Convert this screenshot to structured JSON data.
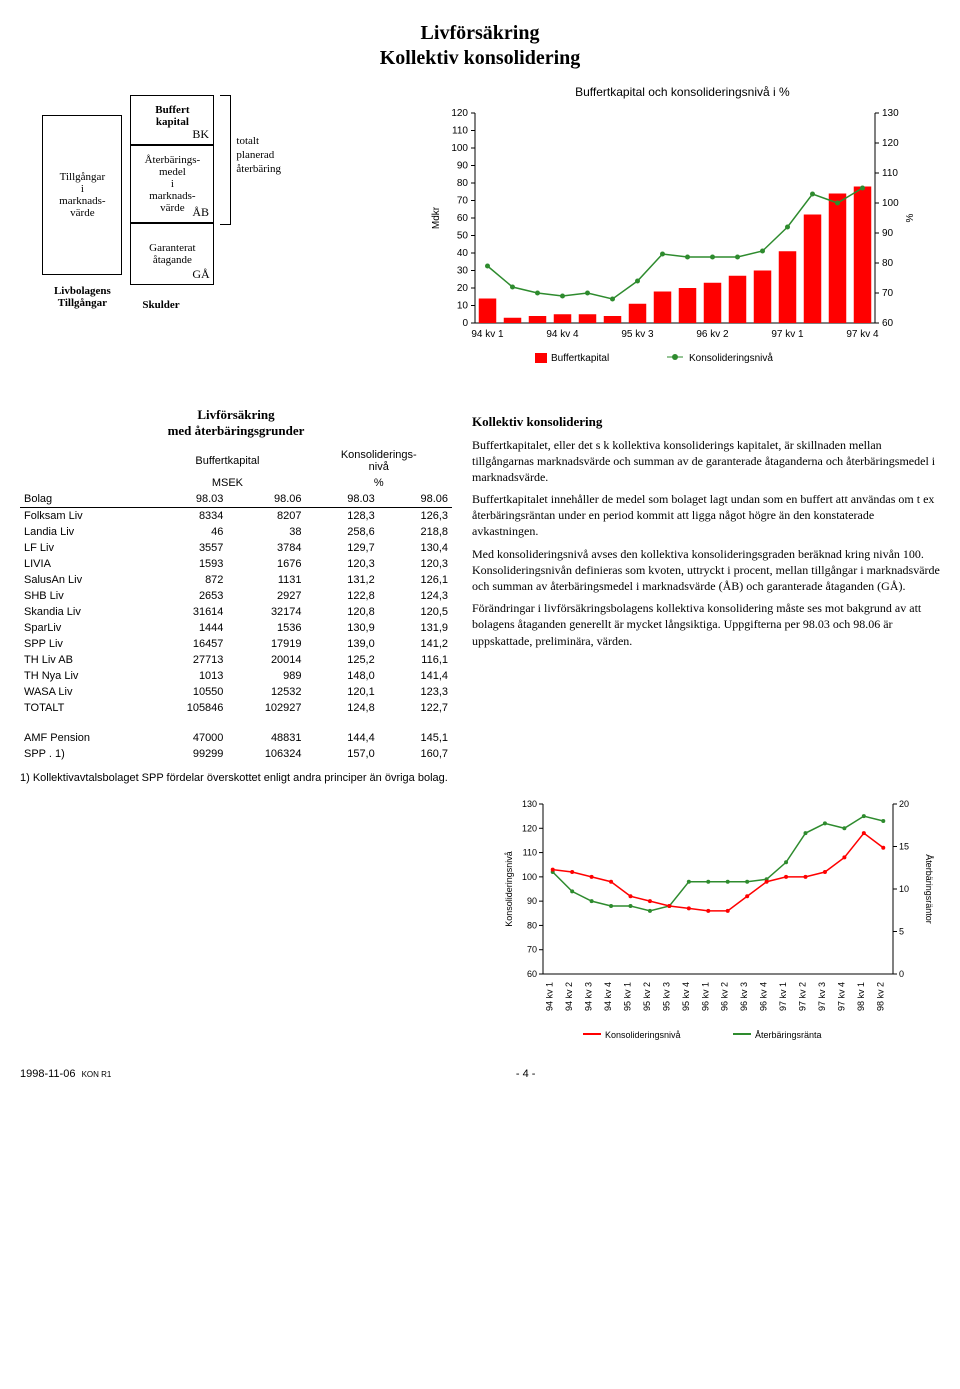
{
  "page": {
    "title1": "Livförsäkring",
    "title2": "Kollektiv konsolidering",
    "date": "1998-11-06",
    "ref": "KON R1",
    "pagenum": "- 4 -"
  },
  "diagram": {
    "left_box": "Tillgångar\ni\nmarknads-\nvärde",
    "bk_box": "Buffert\nkapital",
    "bk_lbl": "BK",
    "ab_box": "Återbärings-\nmedel\ni\nmarknads-\nvärde",
    "ab_lbl": "ÅB",
    "ga_box": "Garanterat\nåtagande",
    "ga_lbl": "GÅ",
    "side1": "totalt",
    "side2": "planerad",
    "side3": "återbäring",
    "bottom_left": "Livbolagens\nTillgångar",
    "bottom_right": "Skulder"
  },
  "chart1": {
    "title": "Buffertkapital och konsolideringsnivå i %",
    "yLeftLabel": "Mdkr",
    "yRightLabel": "%",
    "yLeft": {
      "min": 0,
      "max": 120,
      "step": 10
    },
    "yRight": {
      "min": 60,
      "max": 130,
      "step": 10
    },
    "categories": [
      "94 kv 1",
      "94 kv 4",
      "95 kv 3",
      "96 kv 2",
      "97 kv 1",
      "97 kv 4"
    ],
    "bars_x": [
      "94kv1",
      "94kv2",
      "94kv3",
      "94kv4",
      "95kv1",
      "95kv2",
      "95kv3",
      "95kv4",
      "96kv1",
      "96kv2",
      "96kv3",
      "96kv4",
      "97kv1",
      "97kv2",
      "97kv3",
      "97kv4"
    ],
    "bar_values": [
      14,
      3,
      4,
      5,
      5,
      4,
      11,
      18,
      20,
      23,
      27,
      30,
      41,
      62,
      74,
      78
    ],
    "line_values": [
      79,
      72,
      70,
      69,
      70,
      68,
      74,
      83,
      82,
      82,
      82,
      84,
      92,
      103,
      100,
      105
    ],
    "bar_color": "#ff0000",
    "line_color": "#2e8b2e",
    "axis_color": "#000000",
    "legend1": "Buffertkapital",
    "legend2": "Konsolideringsnivå"
  },
  "table": {
    "title1": "Livförsäkring",
    "title2": "med återbäringsgrunder",
    "col_group1": "Buffertkapital",
    "col_group2": "Konsoliderings-\nnivå",
    "unit1": "MSEK",
    "unit2": "%",
    "head_bolag": "Bolag",
    "head_c1": "98.03",
    "head_c2": "98.06",
    "head_c3": "98.03",
    "head_c4": "98.06",
    "rows": [
      [
        "Folksam Liv",
        "8334",
        "8207",
        "128,3",
        "126,3"
      ],
      [
        "Landia Liv",
        "46",
        "38",
        "258,6",
        "218,8"
      ],
      [
        "LF Liv",
        "3557",
        "3784",
        "129,7",
        "130,4"
      ],
      [
        "LIVIA",
        "1593",
        "1676",
        "120,3",
        "120,3"
      ],
      [
        "SalusAn Liv",
        "872",
        "1131",
        "131,2",
        "126,1"
      ],
      [
        "SHB Liv",
        "2653",
        "2927",
        "122,8",
        "124,3"
      ],
      [
        "Skandia Liv",
        "31614",
        "32174",
        "120,8",
        "120,5"
      ],
      [
        "SparLiv",
        "1444",
        "1536",
        "130,9",
        "131,9"
      ],
      [
        "SPP Liv",
        "16457",
        "17919",
        "139,0",
        "141,2"
      ],
      [
        "TH Liv AB",
        "27713",
        "20014",
        "125,2",
        "116,1"
      ],
      [
        "TH Nya Liv",
        "1013",
        "989",
        "148,0",
        "141,4"
      ],
      [
        "WASA Liv",
        "10550",
        "12532",
        "120,1",
        "123,3"
      ],
      [
        "TOTALT",
        "105846",
        "102927",
        "124,8",
        "122,7"
      ]
    ],
    "rows2": [
      [
        "AMF Pension",
        "47000",
        "48831",
        "144,4",
        "145,1"
      ],
      [
        "SPP . 1)",
        "99299",
        "106324",
        "157,0",
        "160,7"
      ]
    ],
    "footnote": "1) Kollektivavtalsbolaget SPP fördelar överskottet enligt andra principer än övriga bolag."
  },
  "prose": {
    "h": "Kollektiv konsolidering",
    "p1": "Buffertkapitalet, eller det s k kollektiva konsoliderings kapitalet, är skillnaden mellan tillgångarnas marknadsvärde och summan av de garanterade åtaganderna och återbäringsmedel i marknadsvärde.",
    "p2": "Buffertkapitalet innehåller de medel som bolaget lagt undan som en buffert att användas om t ex återbäringsräntan under en period kommit att ligga något högre än den konstaterade avkastningen.",
    "p3": "Med konsolideringsnivå avses den kollektiva konsolideringsgraden beräknad kring nivån 100. Konsolideringsnivån definieras som kvoten, uttryckt i procent, mellan tillgångar i marknadsvärde och summan av återbäringsmedel i marknadsvärde (ÅB) och garanterade åtaganden (GÅ).",
    "p4": "Förändringar i livförsäkringsbolagens kollektiva konsolidering måste ses mot bakgrund av att bolagens åtaganden generellt är mycket långsiktiga. Uppgifterna per 98.03 och 98.06 är uppskattade, preliminära, värden."
  },
  "chart2": {
    "yLeftLabel": "Konsolideringsnivå",
    "yRightLabel": "Återbäringsräntor",
    "yLeft": {
      "min": 60,
      "max": 130,
      "step": 10
    },
    "yRight": {
      "min": 0,
      "max": 20,
      "step": 5
    },
    "categories": [
      "94 kv 1",
      "94 kv 2",
      "94 kv 3",
      "94 kv 4",
      "95 kv 1",
      "95 kv 2",
      "95 kv 3",
      "95 kv 4",
      "96 kv 1",
      "96 kv 2",
      "96 kv 3",
      "96 kv 4",
      "97 kv 1",
      "97 kv 2",
      "97 kv 3",
      "97 kv 4",
      "98 kv 1",
      "98 kv 2"
    ],
    "green": [
      102,
      94,
      90,
      88,
      88,
      86,
      88,
      98,
      98,
      98,
      98,
      99,
      106,
      118,
      122,
      120,
      125,
      123
    ],
    "red": [
      103,
      102,
      100,
      98,
      92,
      90,
      88,
      87,
      86,
      86,
      92,
      98,
      100,
      100,
      102,
      108,
      118,
      112
    ],
    "green_color": "#2e8b2e",
    "red_color": "#ff0000",
    "axis_color": "#000000",
    "legend1": "Konsolideringsnivå",
    "legend2": "Återbäringsränta"
  }
}
